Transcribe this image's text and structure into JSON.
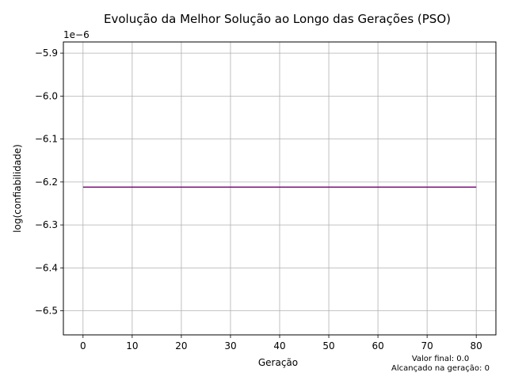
{
  "chart_data": {
    "type": "line",
    "title": "Evolução da Melhor Solução ao Longo das Gerações (PSO)",
    "xlabel": "Geração",
    "ylabel": "log(confiabilidade)",
    "offset_label": "1e−6",
    "xlim": [
      -4,
      84
    ],
    "ylim": [
      -6.556,
      -5.874
    ],
    "x_ticks": [
      0,
      10,
      20,
      30,
      40,
      50,
      60,
      70,
      80
    ],
    "y_ticks": [
      -5.9,
      -6.0,
      -6.1,
      -6.2,
      -6.3,
      -6.4,
      -6.5
    ],
    "y_tick_labels": [
      "−5.9",
      "−6.0",
      "−6.1",
      "−6.2",
      "−6.3",
      "−6.4",
      "−6.5"
    ],
    "grid": true,
    "series": [
      {
        "color": "#800080",
        "x": [
          0,
          80
        ],
        "y": [
          -6.212,
          -6.212
        ]
      }
    ],
    "annotation_lines": [
      "Valor final: 0.0",
      "Alcançado na geração: 0"
    ]
  }
}
